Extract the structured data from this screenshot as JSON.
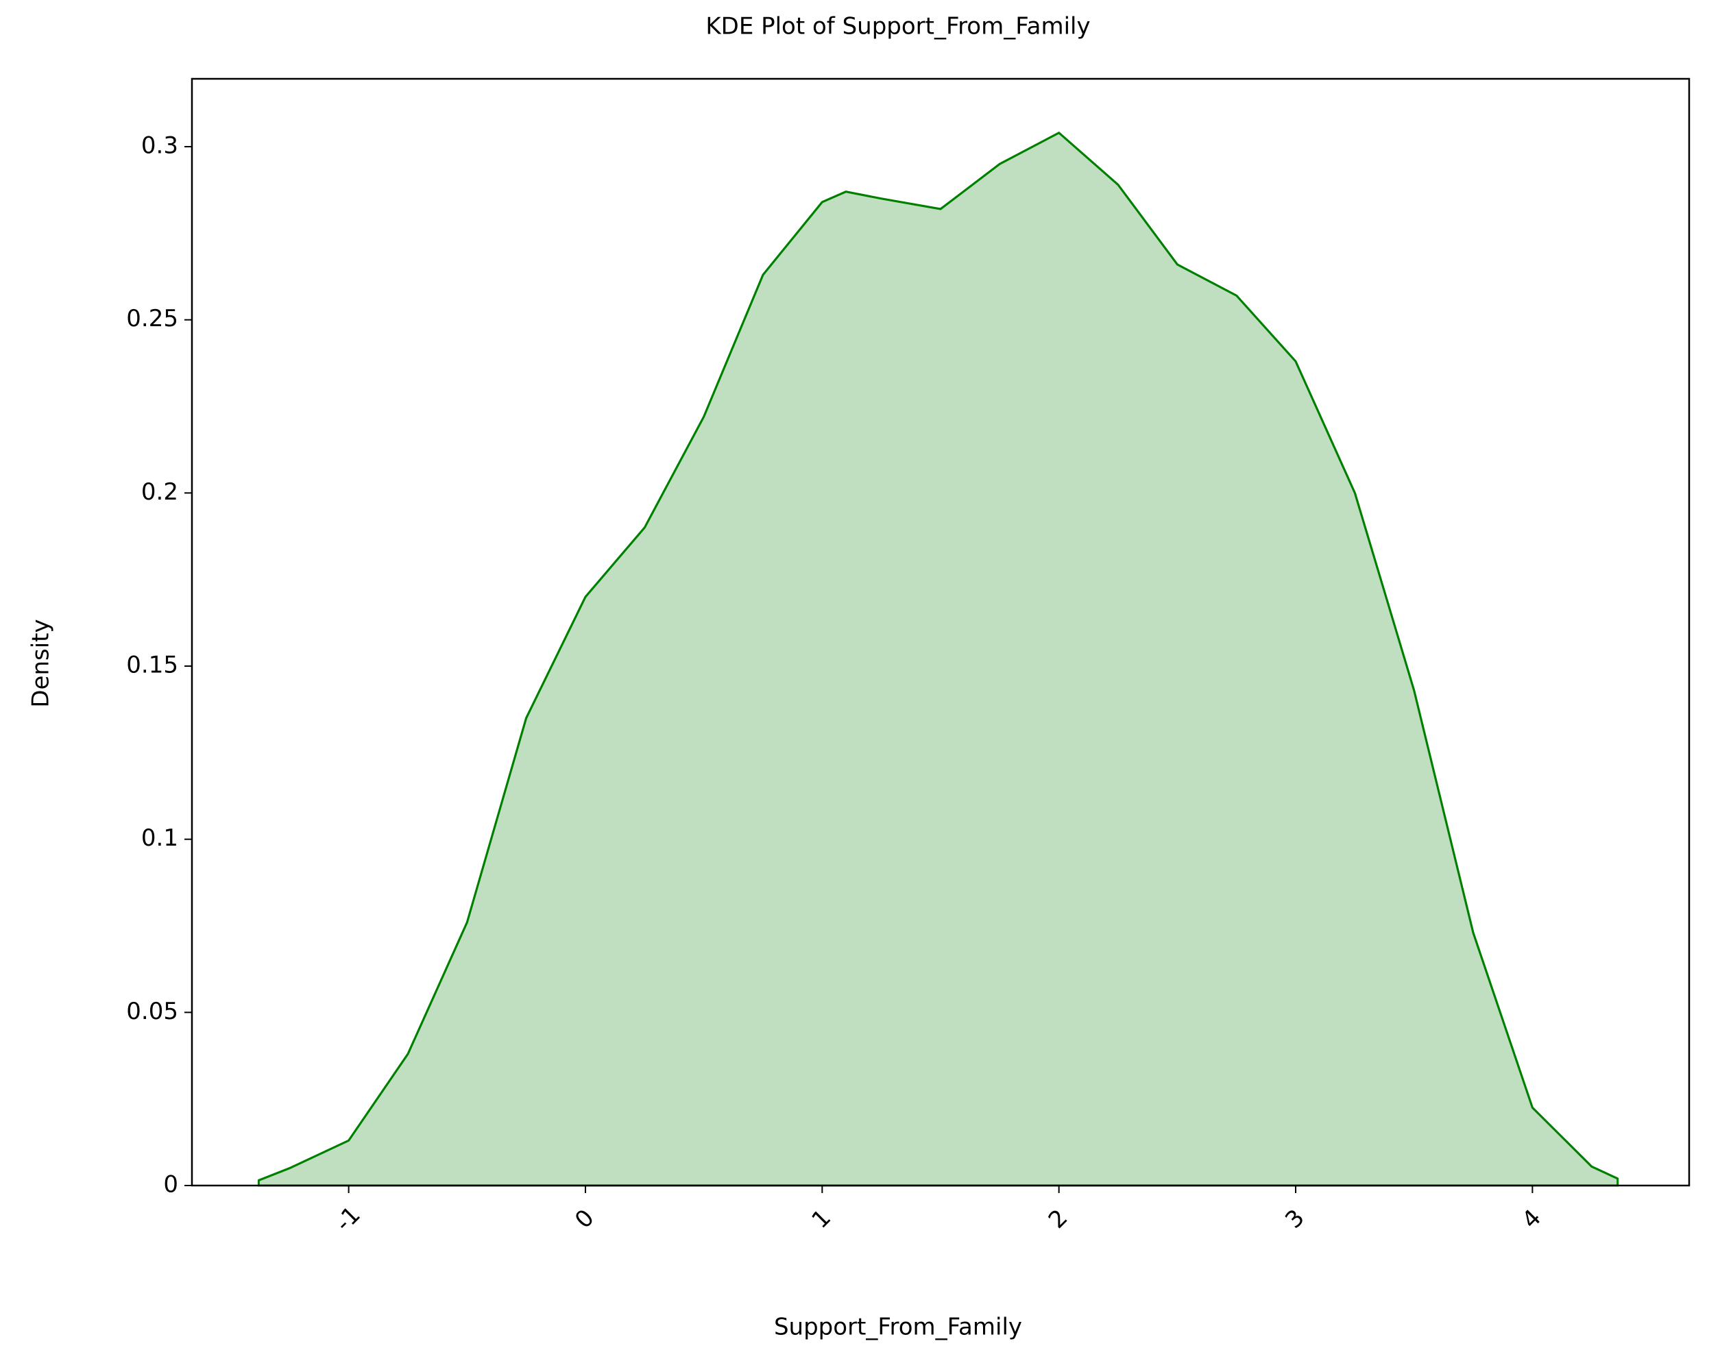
{
  "chart_data": {
    "type": "kde",
    "title": "KDE Plot of Support_From_Family",
    "x_label": "Support_From_Family",
    "y_label": "Density",
    "x": [
      -1.38,
      -1.25,
      -1.0,
      -0.75,
      -0.5,
      -0.25,
      0,
      0.25,
      0.5,
      0.75,
      1.0,
      1.1,
      1.25,
      1.5,
      1.75,
      2.0,
      2.25,
      2.5,
      2.75,
      3.0,
      3.25,
      3.5,
      3.75,
      4.0,
      4.25,
      4.36
    ],
    "values": [
      0.0015,
      0.005,
      0.013,
      0.038,
      0.076,
      0.135,
      0.17,
      0.19,
      0.222,
      0.263,
      0.284,
      0.287,
      0.285,
      0.282,
      0.295,
      0.304,
      0.289,
      0.266,
      0.257,
      0.238,
      0.2,
      0.143,
      0.073,
      0.0225,
      0.0055,
      0.002
    ],
    "color": "#008000",
    "fill": "#c0dfc0",
    "xlim": [
      -1.662,
      4.662
    ],
    "ylim": [
      0,
      0.3196
    ],
    "xticks": [
      -1,
      0,
      1,
      2,
      3,
      4
    ],
    "yticks": [
      0,
      0.05,
      0.1,
      0.15,
      0.2,
      0.25,
      0.3
    ]
  }
}
